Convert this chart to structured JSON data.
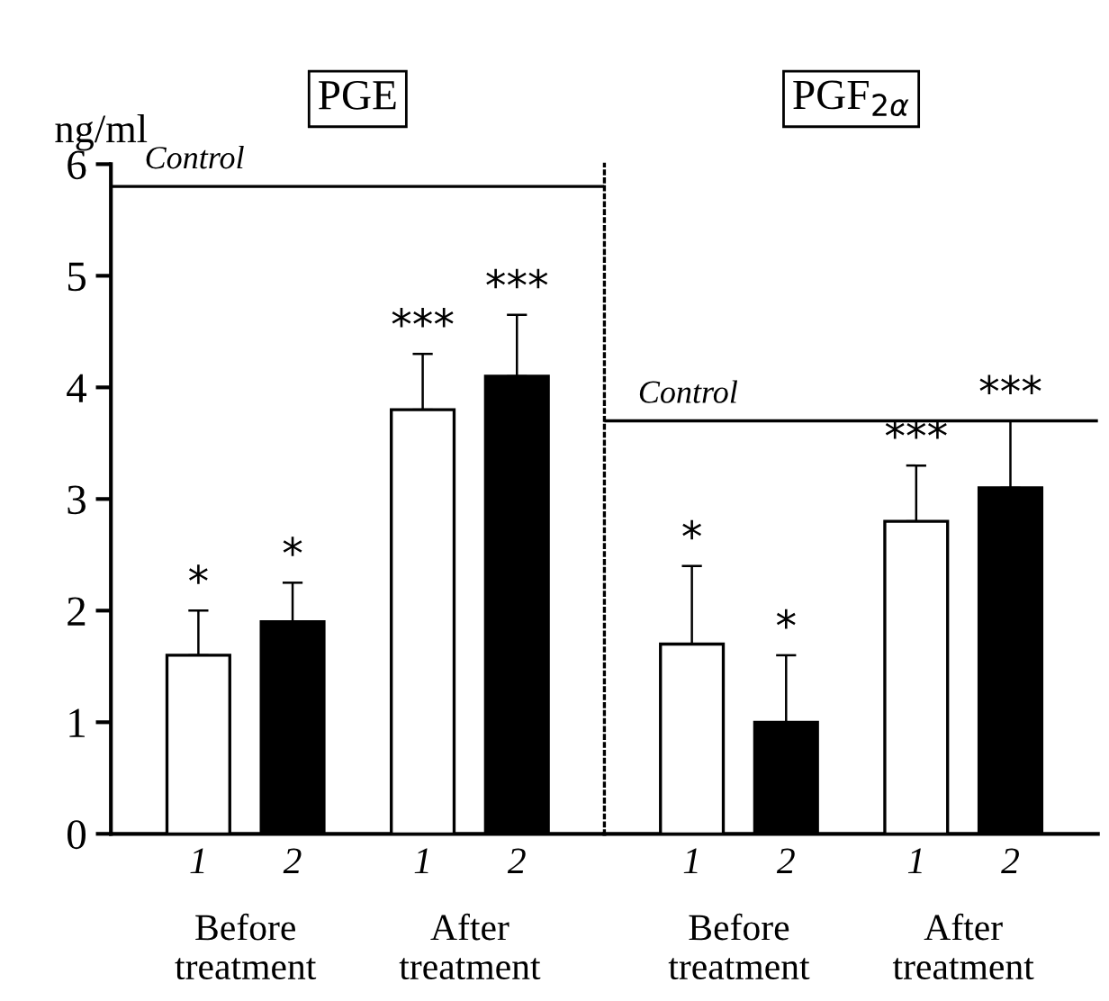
{
  "chart_data": [
    {
      "type": "bar",
      "title": "PGE",
      "ylabel": "ng/ml",
      "categories": [
        "Before\ntreatment",
        "After\ntreatment"
      ],
      "ylim": [
        0,
        6
      ],
      "yticks": [
        0,
        1,
        2,
        3,
        4,
        5,
        6
      ],
      "grid": false,
      "legend": false,
      "series": [
        {
          "name": "1",
          "color": "#ffffff",
          "values": [
            1.6,
            3.8
          ],
          "errors": [
            [
              1.6,
              2.0
            ],
            [
              3.8,
              4.3
            ]
          ],
          "value_labels": [
            "*",
            "***"
          ]
        },
        {
          "name": "2",
          "color": "#000000",
          "values": [
            1.9,
            4.1
          ],
          "errors": [
            [
              1.9,
              2.25
            ],
            [
              4.1,
              4.65
            ]
          ],
          "value_labels": [
            "*",
            "***"
          ]
        }
      ],
      "ref_lines": [
        {
          "axis": "y",
          "value": 5.8,
          "label": "Control",
          "color": "#000000",
          "line_style": "solid"
        }
      ]
    },
    {
      "type": "bar",
      "title": "PGF$_{2α}$",
      "categories": [
        "Before\ntreatment",
        "After\ntreatment"
      ],
      "ylim": [
        0,
        6
      ],
      "yticks": [
        0,
        1,
        2,
        3,
        4,
        5,
        6
      ],
      "tick_labels": "x",
      "grid": false,
      "legend": false,
      "series": [
        {
          "name": "1",
          "color": "#ffffff",
          "values": [
            1.7,
            2.8
          ],
          "errors": [
            [
              1.7,
              2.4
            ],
            [
              2.8,
              3.3
            ]
          ],
          "value_labels": [
            "*",
            "***"
          ]
        },
        {
          "name": "2",
          "color": "#000000",
          "values": [
            1.0,
            3.1
          ],
          "errors": [
            [
              1.0,
              1.6
            ],
            [
              3.1,
              3.7
            ]
          ],
          "value_labels": [
            "*",
            "***"
          ]
        }
      ],
      "ref_lines": [
        {
          "axis": "y",
          "value": 3.7,
          "label": "Control",
          "color": "#000000",
          "line_style": "solid"
        }
      ]
    }
  ]
}
